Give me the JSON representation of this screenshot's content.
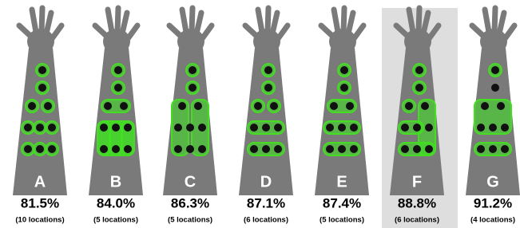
{
  "panels": [
    {
      "letter": "A",
      "accuracy": "81.5%",
      "locations": "(10 locations)"
    },
    {
      "letter": "B",
      "accuracy": "84.0%",
      "locations": "(5 locations)"
    },
    {
      "letter": "C",
      "accuracy": "86.3%",
      "locations": "(5 locations)"
    },
    {
      "letter": "D",
      "accuracy": "87.1%",
      "locations": "(6 locations)"
    },
    {
      "letter": "E",
      "accuracy": "87.4%",
      "locations": "(5 locations)"
    },
    {
      "letter": "F",
      "accuracy": "88.8%",
      "locations": "(6 locations)"
    },
    {
      "letter": "G",
      "accuracy": "91.2%",
      "locations": "(4 locations)"
    }
  ]
}
